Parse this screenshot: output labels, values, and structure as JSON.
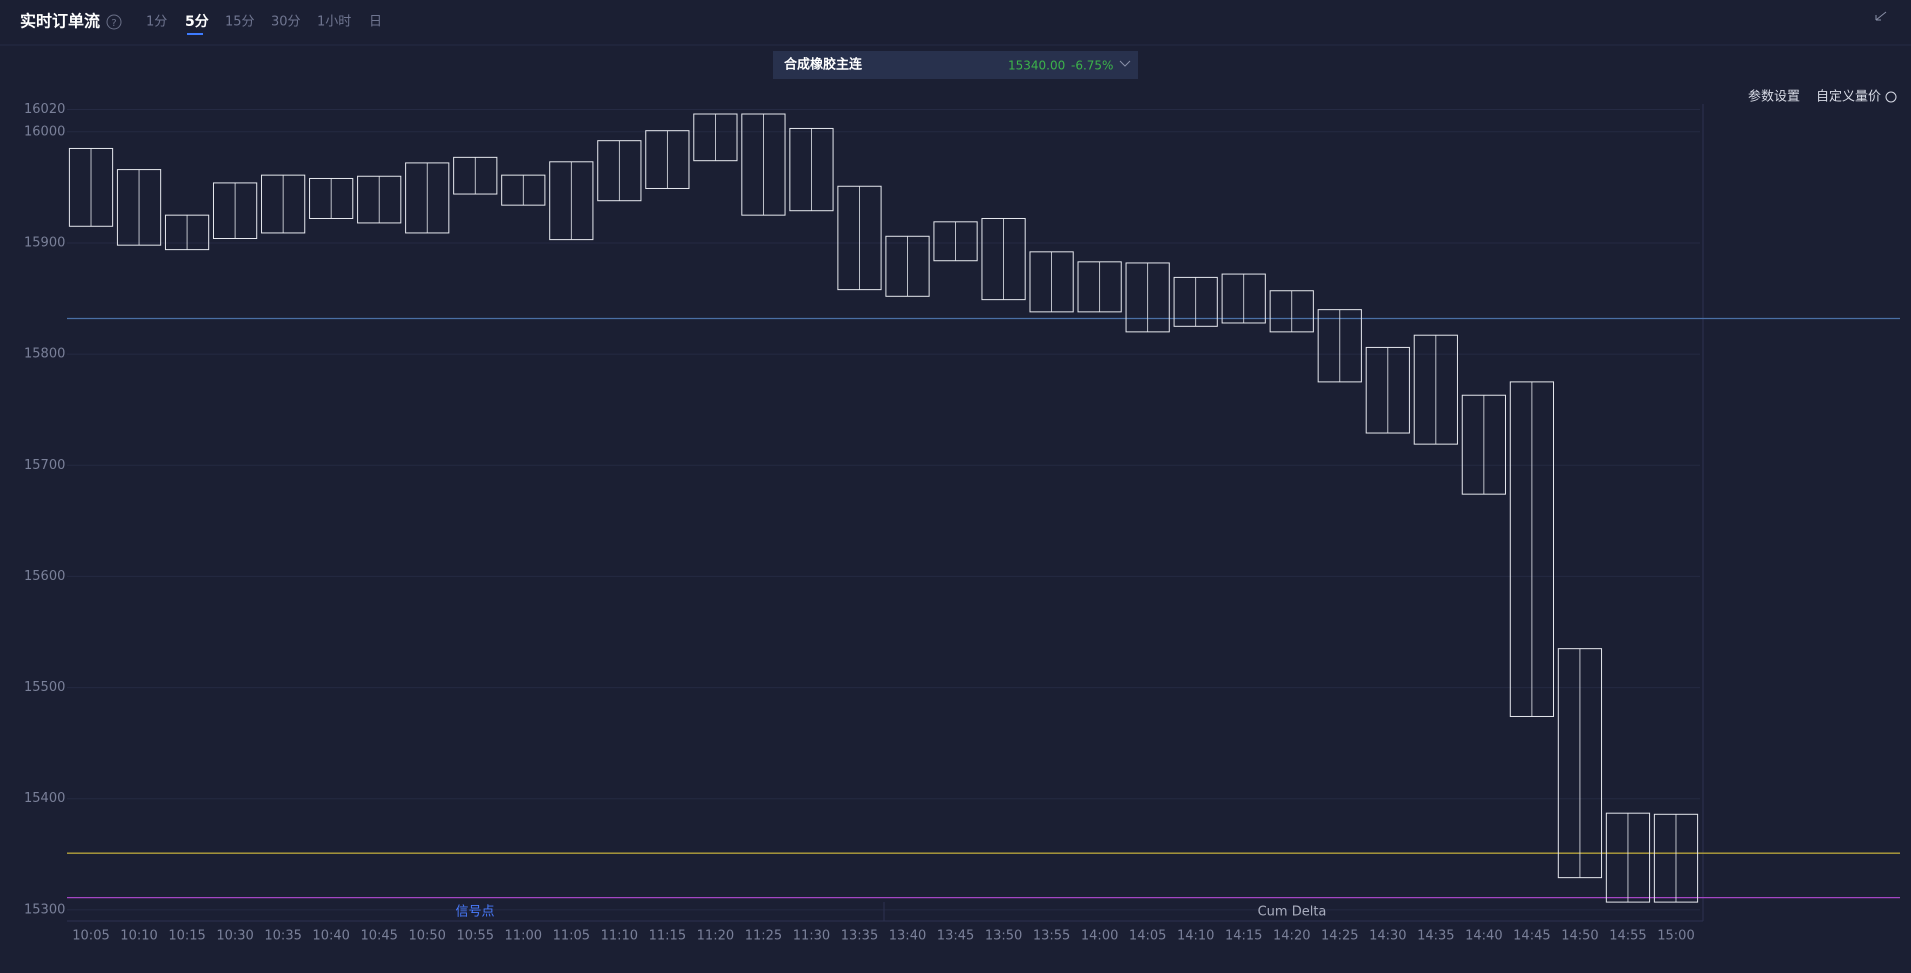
{
  "header": {
    "title": "实时订单流",
    "tabs": [
      "1分",
      "5分",
      "15分",
      "30分",
      "1小时",
      "日"
    ],
    "active_tab": 1
  },
  "instrument": {
    "name": "合成橡胶主连",
    "price": "15340.00",
    "change": "-6.75%"
  },
  "toolbar": [
    "参数设置",
    "自定义量价"
  ],
  "chart_data": {
    "type": "candlestick",
    "categories": [
      "10:05",
      "10:10",
      "10:15",
      "10:30",
      "10:35",
      "10:40",
      "10:45",
      "10:50",
      "10:55",
      "11:00",
      "11:05",
      "11:10",
      "11:15",
      "11:20",
      "11:25",
      "11:30",
      "13:35",
      "13:40",
      "13:45",
      "13:50",
      "13:55",
      "14:00",
      "14:05",
      "14:10",
      "14:15",
      "14:20",
      "14:25",
      "14:30",
      "14:35",
      "14:40",
      "14:45",
      "14:50",
      "14:55",
      "15:00"
    ],
    "high": [
      15985,
      15966,
      15925,
      15954,
      15961,
      15958,
      15960,
      15972,
      15977,
      15961,
      15973,
      15992,
      16001,
      16016,
      16016,
      16003,
      15951,
      15906,
      15919,
      15922,
      15892,
      15883,
      15882,
      15869,
      15872,
      15857,
      15840,
      15806,
      15817,
      15763,
      15775,
      15535,
      15387,
      15386
    ],
    "low": [
      15915,
      15898,
      15894,
      15904,
      15909,
      15922,
      15918,
      15909,
      15944,
      15934,
      15903,
      15938,
      15949,
      15974,
      15925,
      15929,
      15858,
      15852,
      15884,
      15849,
      15838,
      15838,
      15820,
      15825,
      15828,
      15820,
      15775,
      15729,
      15719,
      15674,
      15474,
      15329,
      15307,
      15307
    ],
    "color": "#e6e8ee",
    "ylim": [
      15290,
      16025
    ],
    "yticks": [
      15300,
      15400,
      15500,
      15600,
      15700,
      15800,
      15900,
      16000,
      16020
    ],
    "grid": true,
    "lines": [
      {
        "value": 15832,
        "color": "#4a6fa5"
      },
      {
        "value": 15351,
        "color": "#b5a23c"
      },
      {
        "value": 15311,
        "color": "#a446c4"
      }
    ],
    "panel_labels": [
      "信号点",
      "Cum Delta"
    ]
  }
}
